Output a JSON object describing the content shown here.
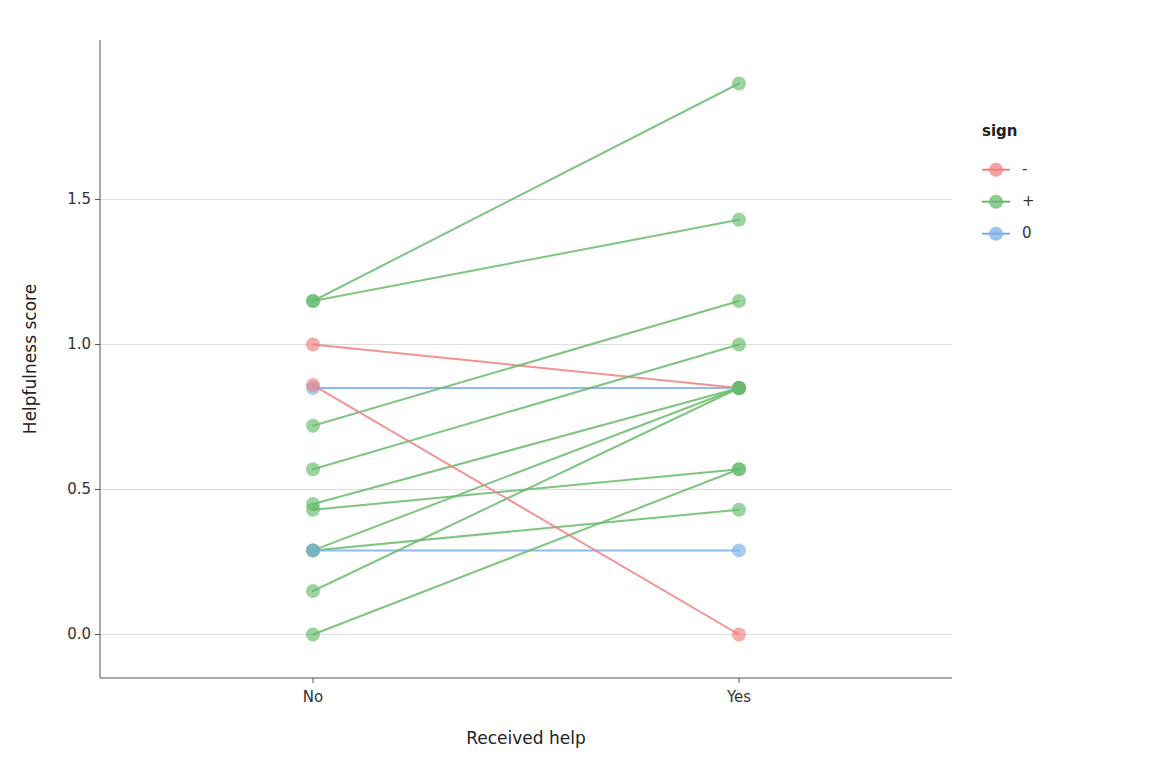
{
  "chart_data": {
    "type": "line",
    "xlabel": "Received help",
    "ylabel": "Helpfulness score",
    "categories": [
      "No",
      "Yes"
    ],
    "legend_title": "sign",
    "legend": "right",
    "groups": [
      {
        "name": "-",
        "color": "#F08080"
      },
      {
        "name": "+",
        "color": "#66BB6A"
      },
      {
        "name": "0",
        "color": "#7BAEE8"
      }
    ],
    "series": [
      {
        "group": "+",
        "values": [
          1.15,
          1.9
        ]
      },
      {
        "group": "+",
        "values": [
          1.15,
          1.43
        ]
      },
      {
        "group": "-",
        "values": [
          1.0,
          0.85
        ]
      },
      {
        "group": "0",
        "values": [
          0.85,
          0.85
        ]
      },
      {
        "group": "+",
        "values": [
          0.72,
          1.15
        ]
      },
      {
        "group": "+",
        "values": [
          0.57,
          1.0
        ]
      },
      {
        "group": "+",
        "values": [
          0.45,
          0.85
        ]
      },
      {
        "group": "+",
        "values": [
          0.43,
          0.57
        ]
      },
      {
        "group": "+",
        "values": [
          0.29,
          0.85
        ]
      },
      {
        "group": "+",
        "values": [
          0.29,
          0.43
        ]
      },
      {
        "group": "0",
        "values": [
          0.29,
          0.29
        ]
      },
      {
        "group": "+",
        "values": [
          0.15,
          0.85
        ]
      },
      {
        "group": "+",
        "values": [
          0.0,
          0.57
        ]
      },
      {
        "group": "-",
        "values": [
          0.86,
          0.0
        ]
      }
    ],
    "marker": "circle",
    "ylim": [
      -0.15,
      2.05
    ],
    "yticks": [
      {
        "value": 0.0,
        "label": "0.0"
      },
      0.5,
      {
        "value": 1.0,
        "label": "1.0"
      },
      1.5
    ],
    "grid": true
  }
}
